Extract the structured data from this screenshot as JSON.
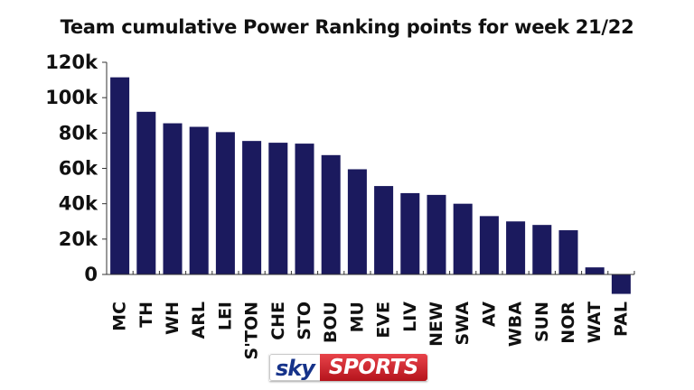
{
  "chart_data": {
    "type": "bar",
    "title": "Team cumulative Power Ranking points for week 21/22",
    "xlabel": "",
    "ylabel": "",
    "categories": [
      "MC",
      "TH",
      "WH",
      "ARL",
      "LEI",
      "S'TON",
      "CHE",
      "STO",
      "BOU",
      "MU",
      "EVE",
      "LIV",
      "NEW",
      "SWA",
      "AV",
      "WBA",
      "SUN",
      "NOR",
      "WAT",
      "PAL"
    ],
    "values": [
      111500,
      92000,
      85500,
      83500,
      80500,
      75500,
      74500,
      74000,
      67500,
      59500,
      50000,
      46000,
      45000,
      40000,
      33000,
      30000,
      28000,
      25000,
      4000,
      -11000
    ],
    "ylim": [
      -11000,
      120000
    ],
    "yticks": [
      0,
      20000,
      40000,
      60000,
      80000,
      100000,
      120000
    ],
    "ytick_labels": [
      "0",
      "20k",
      "40k",
      "60k",
      "80k",
      "100k",
      "120k"
    ],
    "grid": false,
    "legend": "none",
    "bar_color": "#1b1a5e"
  },
  "branding": {
    "logo_sky": "sky",
    "logo_sports": "SPORTS"
  }
}
